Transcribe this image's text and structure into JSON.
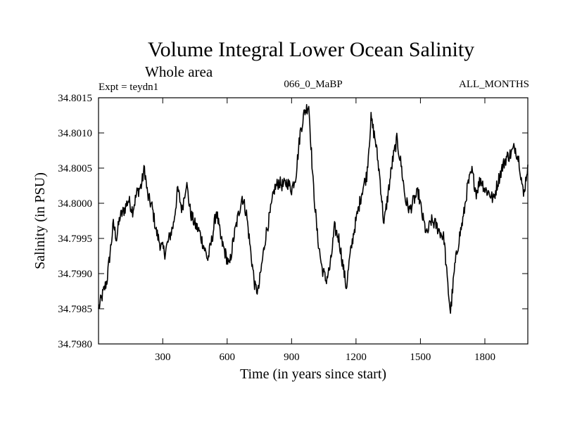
{
  "chart_data": {
    "type": "line",
    "title": "Volume Integral Lower Ocean Salinity",
    "subtitle": "Whole area",
    "left_note": "Expt = teydn1",
    "center_note": "066_0_MaBP",
    "right_note": "ALL_MONTHS",
    "xlabel": "Time (in years since start)",
    "ylabel": "Salinity (in PSU)",
    "xlim": [
      1,
      2000
    ],
    "ylim": [
      34.798,
      34.8015
    ],
    "x_ticks": [
      300,
      600,
      900,
      1200,
      1500,
      1800
    ],
    "x_tick_labels": [
      "300",
      "600",
      "900",
      "1200",
      "1500",
      "1800"
    ],
    "y_ticks": [
      34.798,
      34.7985,
      34.799,
      34.7995,
      34.8,
      34.8005,
      34.801,
      34.8015
    ],
    "y_tick_labels": [
      "34.7980",
      "34.7985",
      "34.7990",
      "34.7995",
      "34.8000",
      "34.8005",
      "34.8010",
      "34.8015"
    ],
    "series": [
      {
        "name": "Salinity",
        "x": [
          1,
          20,
          40,
          55,
          70,
          85,
          100,
          120,
          140,
          160,
          180,
          200,
          215,
          230,
          250,
          270,
          290,
          310,
          330,
          350,
          370,
          390,
          410,
          430,
          450,
          470,
          490,
          510,
          530,
          550,
          570,
          590,
          610,
          630,
          650,
          670,
          690,
          710,
          730,
          745,
          760,
          780,
          800,
          820,
          840,
          860,
          880,
          900,
          920,
          940,
          960,
          980,
          1000,
          1020,
          1040,
          1060,
          1080,
          1100,
          1120,
          1140,
          1155,
          1170,
          1190,
          1210,
          1230,
          1250,
          1270,
          1290,
          1310,
          1330,
          1350,
          1370,
          1390,
          1410,
          1430,
          1450,
          1470,
          1490,
          1510,
          1530,
          1550,
          1570,
          1590,
          1610,
          1625,
          1640,
          1660,
          1680,
          1700,
          1720,
          1740,
          1760,
          1780,
          1800,
          1820,
          1840,
          1860,
          1880,
          1900,
          1920,
          1940,
          1960,
          1980,
          2000
        ],
        "values": [
          34.7985,
          34.7987,
          34.7989,
          34.7993,
          34.7997,
          34.7995,
          34.7998,
          34.7999,
          34.80005,
          34.7999,
          34.80015,
          34.80025,
          34.8005,
          34.8001,
          34.79995,
          34.7996,
          34.7994,
          34.7993,
          34.7995,
          34.7997,
          34.8002,
          34.7999,
          34.8003,
          34.79985,
          34.7997,
          34.7996,
          34.7994,
          34.7992,
          34.7995,
          34.7999,
          34.7995,
          34.7993,
          34.7991,
          34.7995,
          34.7998,
          34.8001,
          34.79985,
          34.7993,
          34.7988,
          34.79875,
          34.7991,
          34.79955,
          34.79985,
          34.8002,
          34.8003,
          34.80025,
          34.8003,
          34.8002,
          34.8004,
          34.801,
          34.8013,
          34.8014,
          34.8003,
          34.79955,
          34.7991,
          34.7989,
          34.7991,
          34.79965,
          34.7995,
          34.7991,
          34.7988,
          34.7992,
          34.7996,
          34.7999,
          34.8002,
          34.8004,
          34.8012,
          34.8009,
          34.8004,
          34.7997,
          34.80015,
          34.8006,
          34.8009,
          34.80055,
          34.80005,
          34.7999,
          34.80005,
          34.80015,
          34.7998,
          34.79955,
          34.79975,
          34.7997,
          34.7996,
          34.7995,
          34.7989,
          34.79845,
          34.7991,
          34.7995,
          34.7998,
          34.80025,
          34.80045,
          34.80015,
          34.80035,
          34.8002,
          34.80015,
          34.80005,
          34.8003,
          34.8005,
          34.80065,
          34.8007,
          34.8008,
          34.8006,
          34.8001,
          34.80055
        ]
      }
    ]
  }
}
